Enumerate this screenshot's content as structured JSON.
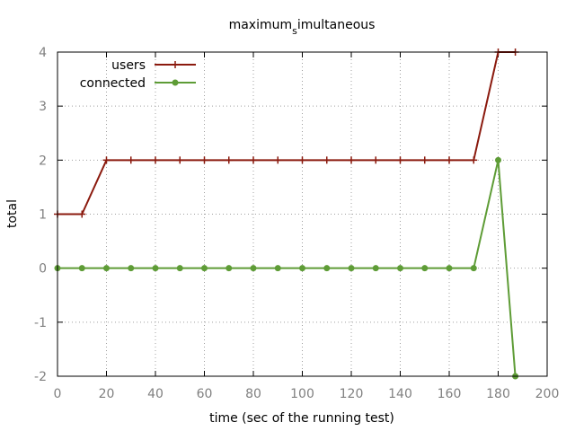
{
  "chart_data": {
    "type": "line",
    "title_parts": {
      "pre": "maximum",
      "sub": "s",
      "post": "imultaneous"
    },
    "xlabel": "time (sec of the running test)",
    "ylabel": "total",
    "xlim": [
      0,
      200
    ],
    "ylim": [
      -2,
      4
    ],
    "xticks": [
      0,
      20,
      40,
      60,
      80,
      100,
      120,
      140,
      160,
      180,
      200
    ],
    "yticks": [
      -2,
      -1,
      0,
      1,
      2,
      3,
      4
    ],
    "grid": true,
    "legend_position": "top-left",
    "series": [
      {
        "name": "users",
        "color": "#8b1a0e",
        "marker": "plus",
        "x": [
          0,
          10,
          20,
          30,
          40,
          50,
          60,
          70,
          80,
          90,
          100,
          110,
          120,
          130,
          140,
          150,
          160,
          170,
          180,
          187
        ],
        "y": [
          1,
          1,
          2,
          2,
          2,
          2,
          2,
          2,
          2,
          2,
          2,
          2,
          2,
          2,
          2,
          2,
          2,
          2,
          4,
          4
        ]
      },
      {
        "name": "connected",
        "color": "#5e9c36",
        "marker": "circle",
        "x": [
          0,
          10,
          20,
          30,
          40,
          50,
          60,
          70,
          80,
          90,
          100,
          110,
          120,
          130,
          140,
          150,
          160,
          170,
          180,
          187
        ],
        "y": [
          0,
          0,
          0,
          0,
          0,
          0,
          0,
          0,
          0,
          0,
          0,
          0,
          0,
          0,
          0,
          0,
          0,
          0,
          2,
          -2
        ]
      }
    ]
  }
}
